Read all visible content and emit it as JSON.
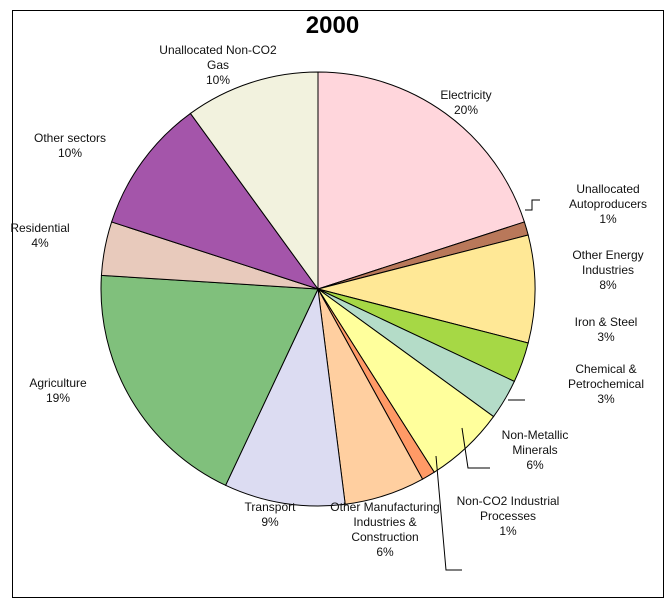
{
  "chart_data": {
    "type": "pie",
    "title": "2000",
    "categories": [
      "Electricity",
      "Unallocated Autoproducers",
      "Other Energy Industries",
      "Iron & Steel",
      "Chemical & Petrochemical",
      "Non-Metallic Minerals",
      "Non-CO2 Industrial Processes",
      "Other Manufacturing Industries & Construction",
      "Transport",
      "Agriculture",
      "Residential",
      "Other sectors",
      "Unallocated Non-CO2 Gas"
    ],
    "values": [
      20,
      1,
      8,
      3,
      3,
      6,
      1,
      6,
      9,
      19,
      4,
      10,
      10
    ],
    "value_labels": [
      "20%",
      "1%",
      "8%",
      "3%",
      "3%",
      "6%",
      "1%",
      "6%",
      "9%",
      "19%",
      "4%",
      "10%",
      "10%"
    ],
    "colors": [
      "#ffd6dc",
      "#b9785a",
      "#ffe896",
      "#a6d845",
      "#b4dcc8",
      "#ffff9c",
      "#ff9a66",
      "#ffcfa0",
      "#dcdcf2",
      "#80c07c",
      "#e8cabc",
      "#a455aa",
      "#f2f2de"
    ]
  }
}
